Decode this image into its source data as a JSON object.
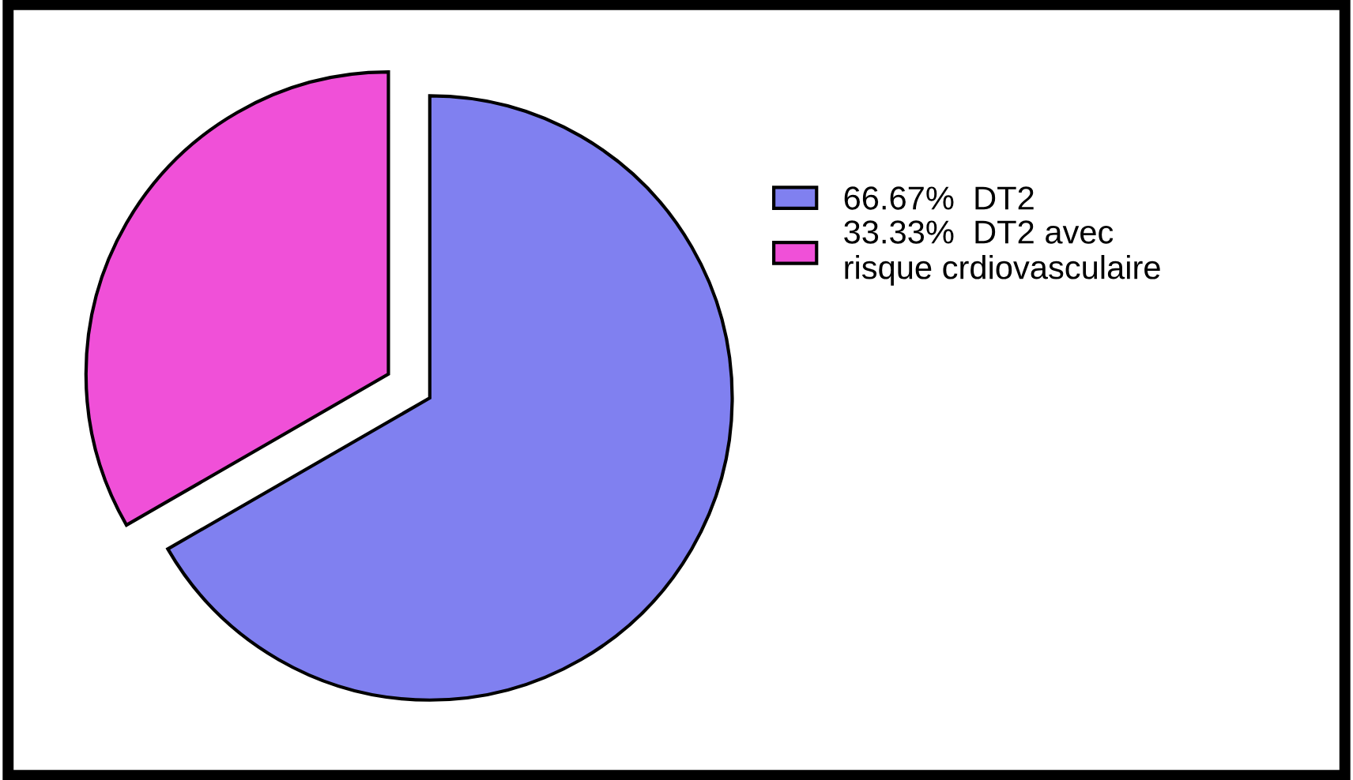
{
  "chart_data": {
    "type": "pie",
    "categories": [
      "DT2",
      "DT2 avec\nrisque crdiovasculaire"
    ],
    "values": [
      66.67,
      33.33
    ],
    "value_labels": [
      "66.67%",
      "33.33%"
    ],
    "colors": [
      "#8080f0",
      "#f050d8"
    ],
    "legend": "top right"
  }
}
